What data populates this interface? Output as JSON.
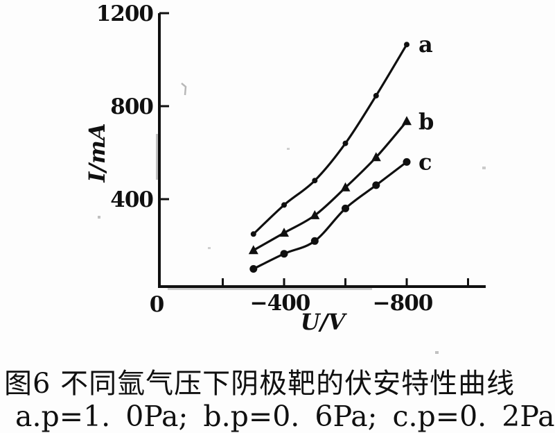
{
  "figure": {
    "caption_title": "图6  不同氩气压下阴极靶的伏安特性曲线",
    "caption_conditions": "a.p=1. 0Pa;  b.p=0. 6Pa;  c.p=0. 2Pa"
  },
  "colors": {
    "ink": "#101010",
    "paper": "#fdfdfd"
  },
  "chart_data": {
    "type": "line",
    "title": "",
    "xlabel": "U/V",
    "ylabel": "I/mA",
    "xlim": [
      0,
      -1060
    ],
    "ylim": [
      0,
      1200
    ],
    "grid": false,
    "legend_position": "at-line-end",
    "x": [
      -300,
      -400,
      -500,
      -600,
      -700,
      -800
    ],
    "series": [
      {
        "name": "a",
        "condition": "p=1.0Pa",
        "marker": "small-dot",
        "values": [
          250,
          375,
          480,
          640,
          845,
          1065
        ]
      },
      {
        "name": "b",
        "condition": "p=0.6Pa",
        "marker": "triangle",
        "values": [
          180,
          255,
          330,
          450,
          580,
          735
        ]
      },
      {
        "name": "c",
        "condition": "p=0.2Pa",
        "marker": "circle",
        "values": [
          100,
          165,
          220,
          360,
          460,
          560
        ]
      }
    ],
    "x_axis": {
      "origin_label": "0",
      "labeled_ticks": [
        {
          "value": -400,
          "label": "−400"
        },
        {
          "value": -800,
          "label": "−800"
        }
      ],
      "minor_ticks": [
        -200,
        -600,
        -1000
      ]
    },
    "y_axis": {
      "ticks": [
        {
          "value": 400,
          "label": "400"
        },
        {
          "value": 800,
          "label": "800"
        },
        {
          "value": 1200,
          "label": "1200"
        }
      ]
    }
  }
}
